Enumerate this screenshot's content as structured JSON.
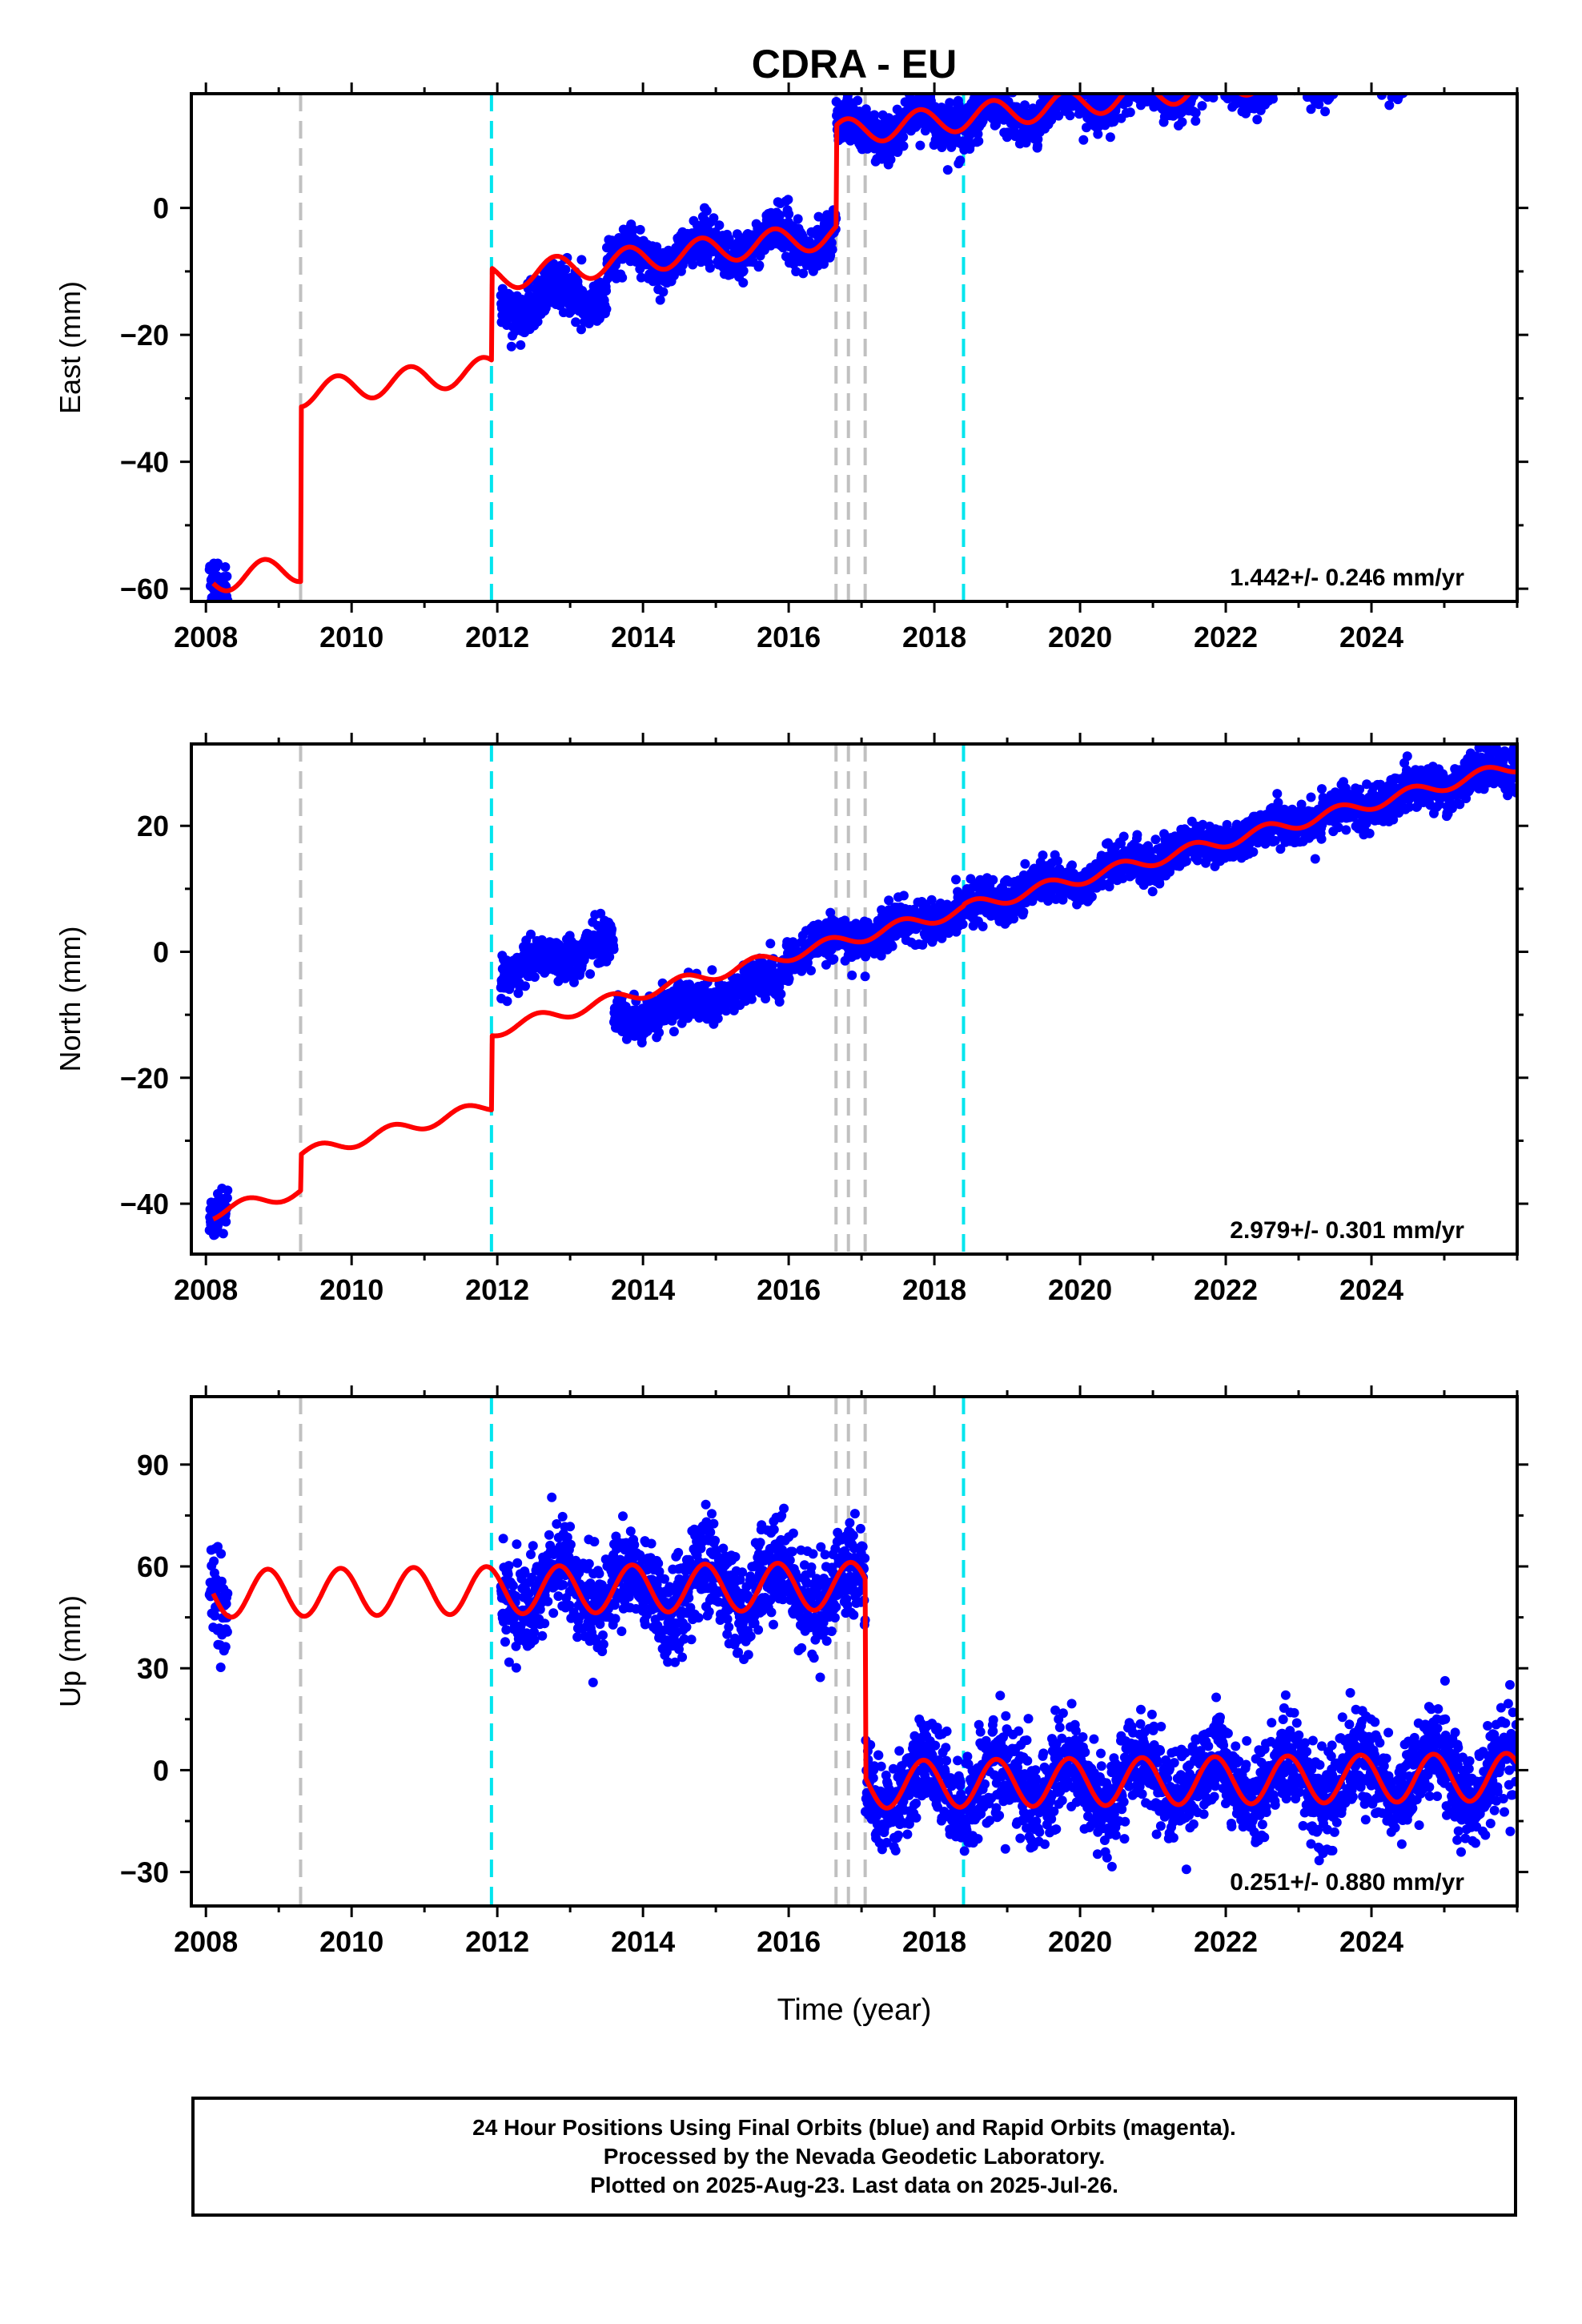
{
  "title": "CDRA - EU",
  "xlabel": "Time (year)",
  "footer": {
    "line1": "24 Hour Positions Using Final Orbits (blue) and Rapid Orbits (magenta).",
    "line2": "Processed by the Nevada Geodetic Laboratory.",
    "line3": "Plotted on 2025-Aug-23. Last data on 2025-Jul-26."
  },
  "colors": {
    "data": "#0000ff",
    "model": "#ff0000",
    "equipment_change": "#c0c0c0",
    "earthquake": "#00e5ee"
  },
  "chart_data": [
    {
      "type": "scatter",
      "panel": "east",
      "ylabel": "East (mm)",
      "xlim": [
        2007.8,
        2026.0
      ],
      "ylim": [
        -62,
        18
      ],
      "xticks": [
        2008,
        2010,
        2012,
        2014,
        2016,
        2018,
        2020,
        2022,
        2024
      ],
      "yticks": [
        -60,
        -40,
        -20,
        0
      ],
      "rate_label": "1.442+/- 0.246 mm/yr",
      "vlines_gray": [
        2009.3,
        2016.65,
        2016.82,
        2017.05
      ],
      "vlines_cyan": [
        2011.92,
        2018.4
      ],
      "model": {
        "segments": [
          {
            "start": 2008.1,
            "end": 2009.3,
            "offset": -58.5
          },
          {
            "start": 2009.3,
            "end": 2011.92,
            "offset": -31.0
          },
          {
            "start": 2011.92,
            "end": 2016.65,
            "offset": -16.5
          },
          {
            "start": 2016.65,
            "end": 2026.0,
            "offset": -0.6
          }
        ],
        "rate": 1.442,
        "annual_amp": 2.1,
        "annual_phase": 0.55
      },
      "data_points": {
        "ranges": [
          [
            2008.05,
            2008.3
          ],
          [
            2012.05,
            2026.5
          ]
        ],
        "noise": 1.8,
        "bias": [
          {
            "from": 2012.0,
            "to": 2013.5,
            "delta": -4.5
          }
        ]
      }
    },
    {
      "type": "scatter",
      "panel": "north",
      "ylabel": "North (mm)",
      "xlim": [
        2007.8,
        2026.0
      ],
      "ylim": [
        -48,
        33
      ],
      "xticks": [
        2008,
        2010,
        2012,
        2014,
        2016,
        2018,
        2020,
        2022,
        2024
      ],
      "yticks": [
        -40,
        -20,
        0,
        20
      ],
      "rate_label": "2.979+/- 0.301 mm/yr",
      "vlines_gray": [
        2009.3,
        2016.65,
        2016.82,
        2017.05
      ],
      "vlines_cyan": [
        2011.92,
        2018.4
      ],
      "model": {
        "segments": [
          {
            "start": 2008.1,
            "end": 2009.3,
            "offset": -41.5
          },
          {
            "start": 2009.3,
            "end": 2011.92,
            "offset": -35.8
          },
          {
            "start": 2011.92,
            "end": 2018.4,
            "offset": -24.0
          },
          {
            "start": 2018.4,
            "end": 2026.0,
            "offset": -23.8
          }
        ],
        "rate": 2.979,
        "annual_amp": 1.0,
        "annual_phase": 0.3
      },
      "data_points": {
        "ranges": [
          [
            2008.05,
            2008.3
          ],
          [
            2012.05,
            2026.5
          ]
        ],
        "noise": 1.6,
        "bias": [
          {
            "from": 2012.0,
            "to": 2013.6,
            "delta": 9.0
          },
          {
            "from": 2013.6,
            "to": 2015.9,
            "delta": -3.5
          }
        ]
      }
    },
    {
      "type": "scatter",
      "panel": "up",
      "ylabel": "Up (mm)",
      "xlim": [
        2007.8,
        2026.0
      ],
      "ylim": [
        -40,
        110
      ],
      "xticks": [
        2008,
        2010,
        2012,
        2014,
        2016,
        2018,
        2020,
        2022,
        2024
      ],
      "yticks": [
        -30,
        0,
        30,
        60,
        90
      ],
      "rate_label": "0.251+/- 0.880 mm/yr",
      "vlines_gray": [
        2009.3,
        2016.65,
        2016.82,
        2017.05
      ],
      "vlines_cyan": [
        2011.92,
        2018.4
      ],
      "model": {
        "segments": [
          {
            "start": 2008.1,
            "end": 2017.05,
            "offset": 52.0
          },
          {
            "start": 2017.05,
            "end": 2026.0,
            "offset": -6.5
          }
        ],
        "rate": 0.251,
        "annual_amp": 7.0,
        "annual_phase": 0.6
      },
      "data_points": {
        "ranges": [
          [
            2008.05,
            2008.3
          ],
          [
            2012.05,
            2026.5
          ]
        ],
        "noise": 7.0,
        "bias": []
      }
    }
  ]
}
